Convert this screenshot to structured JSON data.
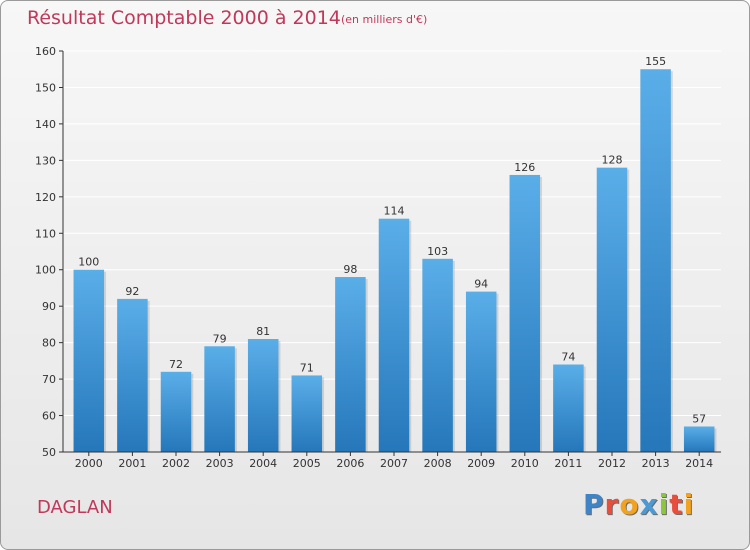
{
  "title": "Résultat Comptable 2000 à 2014",
  "subtitle": "(en milliers d'€)",
  "commune": "DAGLAN",
  "logo": {
    "text": "Proxiti",
    "letters": [
      {
        "char": "P",
        "color": "#3f84c6"
      },
      {
        "char": "r",
        "color": "#e94e3d"
      },
      {
        "char": "o",
        "color": "#f2a21f"
      },
      {
        "char": "x",
        "color": "#4a9ad6"
      },
      {
        "char": "i",
        "color": "#8cc63f"
      },
      {
        "char": "t",
        "color": "#e94e3d"
      },
      {
        "char": "i",
        "color": "#f2a21f"
      }
    ]
  },
  "colors": {
    "title": "#c0385a",
    "bar_top": "#5aaee8",
    "bar_bottom": "#2577ba",
    "gridline": "#ffffff",
    "axis": "#333333"
  },
  "chart_data": {
    "type": "bar",
    "categories": [
      "2000",
      "2001",
      "2002",
      "2003",
      "2004",
      "2005",
      "2006",
      "2007",
      "2008",
      "2009",
      "2010",
      "2011",
      "2012",
      "2013",
      "2014"
    ],
    "values": [
      100,
      92,
      72,
      79,
      81,
      71,
      98,
      114,
      103,
      94,
      126,
      74,
      128,
      155,
      57
    ],
    "ylim": [
      50,
      160
    ],
    "yticks": [
      50,
      60,
      70,
      80,
      90,
      100,
      110,
      120,
      130,
      140,
      150,
      160
    ],
    "grid": true,
    "xlabel": "",
    "ylabel": ""
  }
}
